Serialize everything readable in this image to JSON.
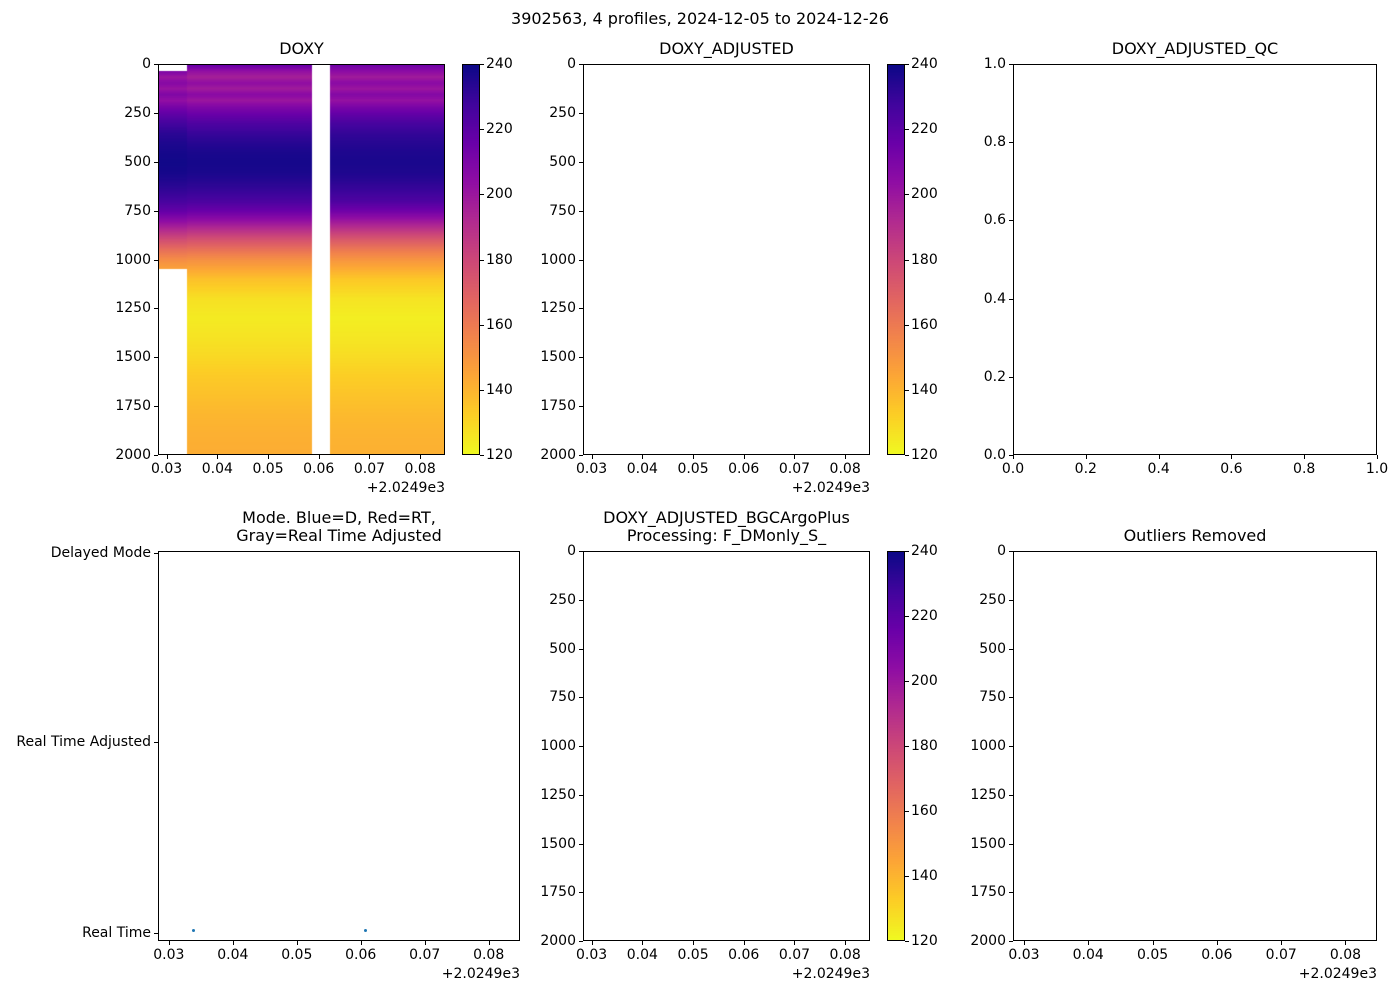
{
  "figure": {
    "suptitle": "3902563, 4 profiles, 2024-12-05 to 2024-12-26",
    "background": "#ffffff"
  },
  "colors": {
    "spine": "#000000",
    "text": "#000000",
    "marker": "#1f77b4",
    "plasma_stops": [
      [
        0.0,
        "#0d0887"
      ],
      [
        0.1,
        "#41049d"
      ],
      [
        0.2,
        "#6a00a8"
      ],
      [
        0.3,
        "#8f0da4"
      ],
      [
        0.4,
        "#b12a90"
      ],
      [
        0.5,
        "#cc4778"
      ],
      [
        0.6,
        "#e16462"
      ],
      [
        0.7,
        "#f2844b"
      ],
      [
        0.8,
        "#fca636"
      ],
      [
        0.9,
        "#fcce25"
      ],
      [
        1.0,
        "#f0f921"
      ]
    ]
  },
  "chart_data": [
    {
      "id": "doxy",
      "type": "heatmap",
      "title": "DOXY",
      "xlim": [
        0.0283,
        0.0849
      ],
      "ylim": [
        0,
        2000
      ],
      "y_inverted": true,
      "x_tick_values": [
        0.03,
        0.04,
        0.05,
        0.06,
        0.07,
        0.08
      ],
      "x_tick_labels": [
        "0.03",
        "0.04",
        "0.05",
        "0.06",
        "0.07",
        "0.08"
      ],
      "x_offset_text": "+2.0249e3",
      "y_tick_values": [
        0,
        250,
        500,
        750,
        1000,
        1250,
        1500,
        1750,
        2000
      ],
      "y_tick_labels": [
        "0",
        "250",
        "500",
        "750",
        "1000",
        "1250",
        "1500",
        "1750",
        "2000"
      ],
      "vmin": 120,
      "vmax": 240,
      "colorbar_tick_values": [
        240,
        220,
        200,
        180,
        160,
        140,
        120
      ],
      "colorbar_tick_labels": [
        "240",
        "220",
        "200",
        "180",
        "160",
        "140",
        "120"
      ],
      "depths": [
        0,
        30,
        60,
        90,
        120,
        150,
        180,
        210,
        250,
        300,
        350,
        400,
        450,
        500,
        550,
        600,
        650,
        700,
        750,
        800,
        850,
        900,
        950,
        1000,
        1050,
        1100,
        1200,
        1300,
        1400,
        1500,
        1600,
        1700,
        1800,
        1900,
        2000
      ],
      "profiles": [
        {
          "x_edges": [
            0.0283,
            0.0338
          ],
          "depth_min": 30,
          "depth_max": 1050,
          "values": [
            null,
            210,
            200,
            207,
            201,
            209,
            203,
            211,
            219,
            227,
            233,
            236,
            238,
            239,
            238,
            235,
            231,
            226,
            218,
            205,
            191,
            177,
            164,
            153,
            145,
            null,
            null,
            null,
            null,
            null,
            null,
            null,
            null,
            null,
            null
          ]
        },
        {
          "x_edges": [
            0.0338,
            0.0587
          ],
          "depth_min": 0,
          "depth_max": 2000,
          "values": [
            216,
            203,
            196,
            204,
            198,
            206,
            200,
            208,
            216,
            224,
            230,
            234,
            237,
            238,
            237,
            234,
            230,
            225,
            216,
            203,
            189,
            175,
            163,
            152,
            144,
            136,
            127,
            124,
            126,
            129,
            133,
            136,
            139,
            141,
            142
          ]
        },
        {
          "x_edges": [
            0.0587,
            0.0622
          ],
          "missing": true,
          "values": []
        },
        {
          "x_edges": [
            0.0622,
            0.0849
          ],
          "depth_min": 0,
          "depth_max": 2000,
          "values": [
            214,
            205,
            198,
            206,
            200,
            208,
            202,
            210,
            218,
            226,
            231,
            234,
            236,
            237,
            236,
            233,
            229,
            224,
            214,
            200,
            186,
            172,
            160,
            150,
            142,
            134,
            126,
            123,
            125,
            128,
            132,
            135,
            138,
            140,
            141
          ]
        }
      ]
    },
    {
      "id": "doxy_adjusted",
      "type": "heatmap",
      "title": "DOXY_ADJUSTED",
      "xlim": [
        0.0283,
        0.0849
      ],
      "ylim": [
        0,
        2000
      ],
      "y_inverted": true,
      "x_tick_values": [
        0.03,
        0.04,
        0.05,
        0.06,
        0.07,
        0.08
      ],
      "x_tick_labels": [
        "0.03",
        "0.04",
        "0.05",
        "0.06",
        "0.07",
        "0.08"
      ],
      "x_offset_text": "+2.0249e3",
      "y_tick_values": [
        0,
        250,
        500,
        750,
        1000,
        1250,
        1500,
        1750,
        2000
      ],
      "y_tick_labels": [
        "0",
        "250",
        "500",
        "750",
        "1000",
        "1250",
        "1500",
        "1750",
        "2000"
      ],
      "vmin": 120,
      "vmax": 240,
      "colorbar_tick_values": [
        240,
        220,
        200,
        180,
        160,
        140,
        120
      ],
      "colorbar_tick_labels": [
        "240",
        "220",
        "200",
        "180",
        "160",
        "140",
        "120"
      ],
      "depths": [],
      "profiles": []
    },
    {
      "id": "doxy_adjusted_qc",
      "type": "scatter",
      "title": "DOXY_ADJUSTED_QC",
      "xlim": [
        0.0,
        1.0
      ],
      "ylim": [
        0.0,
        1.0
      ],
      "y_inverted": false,
      "x_tick_values": [
        0.0,
        0.2,
        0.4,
        0.6,
        0.8,
        1.0
      ],
      "x_tick_labels": [
        "0.0",
        "0.2",
        "0.4",
        "0.6",
        "0.8",
        "1.0"
      ],
      "y_tick_values": [
        0.0,
        0.2,
        0.4,
        0.6,
        0.8,
        1.0
      ],
      "y_tick_labels": [
        "0.0",
        "0.2",
        "0.4",
        "0.6",
        "0.8",
        "1.0"
      ],
      "points": []
    },
    {
      "id": "mode",
      "type": "categorical_scatter",
      "title": "Mode. Blue=D, Red=RT,\nGray=Real Time Adjusted",
      "xlim": [
        0.0283,
        0.0849
      ],
      "x_tick_values": [
        0.03,
        0.04,
        0.05,
        0.06,
        0.07,
        0.08
      ],
      "x_tick_labels": [
        "0.03",
        "0.04",
        "0.05",
        "0.06",
        "0.07",
        "0.08"
      ],
      "x_offset_text": "+2.0249e3",
      "y_categories": [
        "Delayed Mode",
        "Real Time Adjusted",
        "Real Time"
      ],
      "marker_color": "#1f77b4",
      "points": [
        {
          "x": 0.0338,
          "category": "Real Time"
        },
        {
          "x": 0.0607,
          "category": "Real Time"
        }
      ]
    },
    {
      "id": "bgc",
      "type": "heatmap",
      "title": "DOXY_ADJUSTED_BGCArgoPlus\nProcessing: F_DMonly_S_",
      "xlim": [
        0.0283,
        0.0849
      ],
      "ylim": [
        0,
        2000
      ],
      "y_inverted": true,
      "x_tick_values": [
        0.03,
        0.04,
        0.05,
        0.06,
        0.07,
        0.08
      ],
      "x_tick_labels": [
        "0.03",
        "0.04",
        "0.05",
        "0.06",
        "0.07",
        "0.08"
      ],
      "x_offset_text": "+2.0249e3",
      "y_tick_values": [
        0,
        250,
        500,
        750,
        1000,
        1250,
        1500,
        1750,
        2000
      ],
      "y_tick_labels": [
        "0",
        "250",
        "500",
        "750",
        "1000",
        "1250",
        "1500",
        "1750",
        "2000"
      ],
      "vmin": 120,
      "vmax": 240,
      "colorbar_tick_values": [
        240,
        220,
        200,
        180,
        160,
        140,
        120
      ],
      "colorbar_tick_labels": [
        "240",
        "220",
        "200",
        "180",
        "160",
        "140",
        "120"
      ],
      "depths": [],
      "profiles": []
    },
    {
      "id": "outliers",
      "type": "scatter",
      "title": "Outliers Removed",
      "xlim": [
        0.0283,
        0.0849
      ],
      "ylim": [
        0,
        2000
      ],
      "y_inverted": true,
      "x_tick_values": [
        0.03,
        0.04,
        0.05,
        0.06,
        0.07,
        0.08
      ],
      "x_tick_labels": [
        "0.03",
        "0.04",
        "0.05",
        "0.06",
        "0.07",
        "0.08"
      ],
      "x_offset_text": "+2.0249e3",
      "y_tick_values": [
        0,
        250,
        500,
        750,
        1000,
        1250,
        1500,
        1750,
        2000
      ],
      "y_tick_labels": [
        "0",
        "250",
        "500",
        "750",
        "1000",
        "1250",
        "1500",
        "1750",
        "2000"
      ],
      "points": []
    }
  ]
}
